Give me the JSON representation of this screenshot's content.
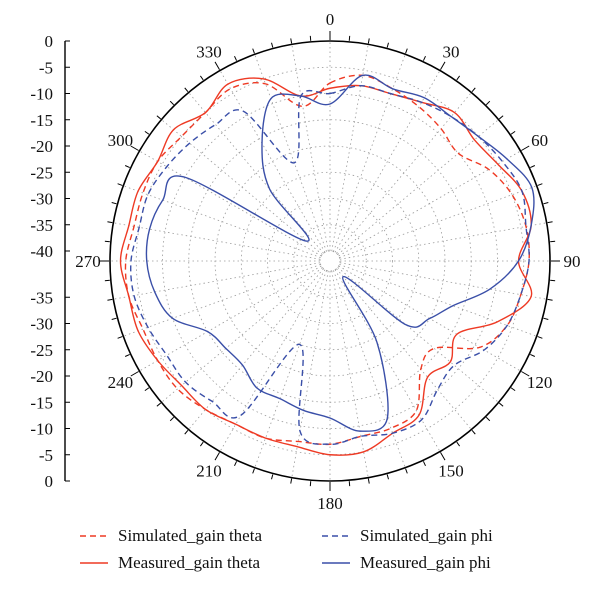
{
  "chart_data": {
    "type": "polar-line",
    "title": "",
    "angle_ticks": [
      "0",
      "30",
      "60",
      "90",
      "120",
      "150",
      "180",
      "210",
      "240",
      "270",
      "300",
      "330"
    ],
    "radial_ticks_top": [
      "0",
      "-5",
      "-10",
      "-15",
      "-20",
      "-25",
      "-30",
      "-35",
      "-40"
    ],
    "radial_ticks_bottom": [
      "-35",
      "-30",
      "-25",
      "-20",
      "-15",
      "-10",
      "-5",
      "0"
    ],
    "rlim": [
      -40,
      0
    ],
    "grid": true,
    "legend_position": "bottom",
    "colors": {
      "theta": "#ee3a24",
      "phi": "#3a4fa8",
      "grid": "#9a9a9a",
      "axis": "#000000"
    },
    "series": [
      {
        "name": "Simulated_gain theta",
        "style": "dashed",
        "color": "#ee3a24",
        "angles": [
          0,
          10,
          20,
          30,
          40,
          50,
          60,
          70,
          80,
          90,
          100,
          110,
          120,
          130,
          140,
          150,
          160,
          170,
          180,
          190,
          200,
          210,
          220,
          230,
          240,
          250,
          260,
          270,
          280,
          290,
          300,
          310,
          320,
          330,
          340,
          350
        ],
        "values": [
          -8,
          -6,
          -7,
          -8,
          -9,
          -10,
          -7,
          -5,
          -4,
          -4,
          -5,
          -6,
          -9,
          -16,
          -15,
          -9,
          -8,
          -8,
          -7,
          -7,
          -6,
          -6,
          -5,
          -4,
          -4,
          -4,
          -3,
          -3,
          -4,
          -4,
          -4,
          -5,
          -5,
          -4,
          -6,
          -12
        ]
      },
      {
        "name": "Measured_gain theta",
        "style": "solid",
        "color": "#ee3a24",
        "angles": [
          0,
          10,
          20,
          30,
          40,
          50,
          60,
          70,
          80,
          90,
          100,
          110,
          120,
          130,
          140,
          150,
          160,
          170,
          180,
          190,
          200,
          210,
          220,
          230,
          240,
          250,
          260,
          270,
          280,
          290,
          300,
          310,
          320,
          330,
          340,
          350
        ],
        "values": [
          -9,
          -8,
          -8,
          -7,
          -5,
          -6,
          -5,
          -3,
          -3,
          -6,
          -3,
          -8,
          -14,
          -12,
          -13,
          -8,
          -7,
          -5,
          -5,
          -6,
          -6,
          -6,
          -5,
          -5,
          -4,
          -3,
          -3,
          -2,
          -3,
          -3,
          -4,
          -3,
          -5,
          -3,
          -5,
          -10
        ]
      },
      {
        "name": "Simulated_gain phi",
        "style": "dashed",
        "color": "#3a4fa8",
        "angles": [
          0,
          10,
          20,
          30,
          40,
          50,
          60,
          70,
          80,
          90,
          100,
          110,
          120,
          130,
          140,
          150,
          160,
          170,
          180,
          190,
          200,
          210,
          220,
          230,
          240,
          250,
          260,
          270,
          280,
          290,
          300,
          310,
          320,
          330,
          340,
          350
        ],
        "values": [
          -10,
          -8,
          -8,
          -7,
          -6,
          -5,
          -4,
          -3,
          -4,
          -4,
          -5,
          -6,
          -8,
          -11,
          -10,
          -7,
          -7,
          -8,
          -7,
          -9,
          -25,
          -8,
          -7,
          -6,
          -6,
          -5,
          -4,
          -4,
          -5,
          -5,
          -6,
          -7,
          -8,
          -9,
          -22,
          -10
        ]
      },
      {
        "name": "Measured_gain phi",
        "style": "solid",
        "color": "#3a4fa8",
        "angles": [
          0,
          10,
          20,
          30,
          40,
          50,
          60,
          70,
          80,
          90,
          100,
          110,
          120,
          130,
          140,
          150,
          160,
          170,
          180,
          190,
          200,
          210,
          220,
          230,
          240,
          250,
          260,
          270,
          280,
          290,
          300,
          310,
          320,
          330,
          340,
          350
        ],
        "values": [
          -12,
          -6,
          -7,
          -6,
          -6,
          -5,
          -3,
          -1,
          -3,
          -6,
          -11,
          -17,
          -20,
          -23,
          -38,
          -24,
          -10,
          -9,
          -12,
          -13,
          -14,
          -14,
          -16,
          -16,
          -15,
          -10,
          -8,
          -7,
          -7,
          -8,
          -10,
          -36,
          -24,
          -16,
          -9,
          -10
        ]
      }
    ],
    "legend": [
      "Simulated_gain theta",
      "Simulated_gain phi",
      "Measured_gain theta",
      "Measured_gain phi"
    ]
  }
}
